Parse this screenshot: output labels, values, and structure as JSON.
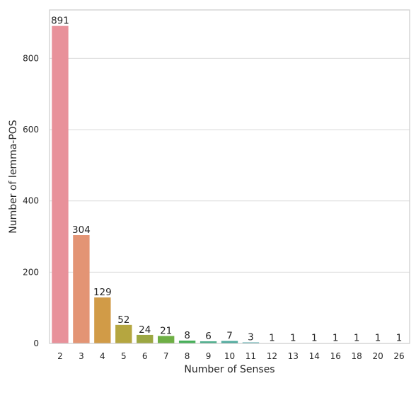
{
  "chart_data": {
    "type": "bar",
    "title": "",
    "xlabel": "Number of Senses",
    "ylabel": "Number of lemma-POS",
    "categories": [
      "2",
      "3",
      "4",
      "5",
      "6",
      "7",
      "8",
      "9",
      "10",
      "11",
      "12",
      "13",
      "14",
      "16",
      "18",
      "20",
      "26"
    ],
    "values": [
      891,
      304,
      129,
      52,
      24,
      21,
      8,
      6,
      7,
      3,
      1,
      1,
      1,
      1,
      1,
      1,
      1
    ],
    "data_labels": [
      "891",
      "304",
      "129",
      "52",
      "24",
      "21",
      "8",
      "6",
      "7",
      "3",
      "1",
      "1",
      "1",
      "1",
      "1",
      "1",
      "1"
    ],
    "ylim": [
      0,
      936
    ],
    "yticks": [
      0,
      200,
      400,
      600,
      800
    ],
    "ytick_labels": [
      "0",
      "200",
      "400",
      "600",
      "800"
    ],
    "grid": "horizontal",
    "legend": "none",
    "colors": [
      "#e8919a",
      "#e39474",
      "#d19b47",
      "#b5a640",
      "#9ca742",
      "#6eaf45",
      "#49b05b",
      "#4eae8c",
      "#52ab9e",
      "#55a9aa",
      "#58a6b9",
      "#5ea2cc",
      "#7c9ad9",
      "#a690e0",
      "#c685e0",
      "#db7ed2",
      "#e580b2"
    ]
  }
}
